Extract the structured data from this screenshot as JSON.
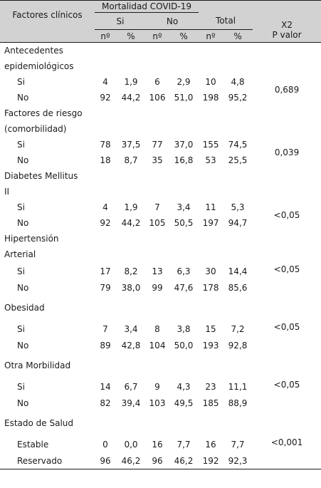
{
  "header": {
    "factores": "Factores clínicos",
    "mortalidad": "Mortalidad COVID-19",
    "si": "Si",
    "no": "No",
    "total": "Total",
    "x2": "X2",
    "pvalor": "P valor",
    "n": "nº",
    "pct": "%"
  },
  "groups": [
    {
      "label_lines": [
        "Antecedentes",
        "epidemiológicos"
      ],
      "pvalue": "0,689",
      "rows": [
        {
          "label": "Si",
          "si_n": "4",
          "si_pct": "1,9",
          "no_n": "6",
          "no_pct": "2,9",
          "total_n": "10",
          "total_pct": "4,8"
        },
        {
          "label": "No",
          "si_n": "92",
          "si_pct": "44,2",
          "no_n": "106",
          "no_pct": "51,0",
          "total_n": "198",
          "total_pct": "95,2"
        }
      ]
    },
    {
      "label_lines": [
        "Factores de riesgo",
        "(comorbilidad)"
      ],
      "pvalue": "0,039",
      "rows": [
        {
          "label": "Si",
          "si_n": "78",
          "si_pct": "37,5",
          "no_n": "77",
          "no_pct": "37,0",
          "total_n": "155",
          "total_pct": "74,5"
        },
        {
          "label": "No",
          "si_n": "18",
          "si_pct": "8,7",
          "no_n": "35",
          "no_pct": "16,8",
          "total_n": "53",
          "total_pct": "25,5"
        }
      ]
    },
    {
      "label_lines": [
        "Diabetes Mellitus",
        "II"
      ],
      "pvalue": "<0,05",
      "rows": [
        {
          "label": "Si",
          "si_n": "4",
          "si_pct": "1,9",
          "no_n": "7",
          "no_pct": "3,4",
          "total_n": "11",
          "total_pct": "5,3"
        },
        {
          "label": "No",
          "si_n": "92",
          "si_pct": "44,2",
          "no_n": "105",
          "no_pct": "50,5",
          "total_n": "197",
          "total_pct": "94,7"
        }
      ]
    },
    {
      "label_lines": [
        "Hipertensión",
        "Arterial"
      ],
      "pvalue": "<0,05",
      "pvalue_on_first": true,
      "rows": [
        {
          "label": "Si",
          "si_n": "17",
          "si_pct": "8,2",
          "no_n": "13",
          "no_pct": "6,3",
          "total_n": "30",
          "total_pct": "14,4"
        },
        {
          "label": "No",
          "si_n": "79",
          "si_pct": "38,0",
          "no_n": "99",
          "no_pct": "47,6",
          "total_n": "178",
          "total_pct": "85,6"
        }
      ]
    },
    {
      "label_lines": [
        "Obesidad"
      ],
      "pvalue": "<0,05",
      "pvalue_on_first": true,
      "rows": [
        {
          "label": "Si",
          "si_n": "7",
          "si_pct": "3,4",
          "no_n": "8",
          "no_pct": "3,8",
          "total_n": "15",
          "total_pct": "7,2"
        },
        {
          "label": "No",
          "si_n": "89",
          "si_pct": "42,8",
          "no_n": "104",
          "no_pct": "50,0",
          "total_n": "193",
          "total_pct": "92,8"
        }
      ]
    },
    {
      "label_lines": [
        "Otra Morbilidad"
      ],
      "pvalue": "<0,05",
      "pvalue_on_first": true,
      "rows": [
        {
          "label": "Si",
          "si_n": "14",
          "si_pct": "6,7",
          "no_n": "9",
          "no_pct": "4,3",
          "total_n": "23",
          "total_pct": "11,1"
        },
        {
          "label": "No",
          "si_n": "82",
          "si_pct": "39,4",
          "no_n": "103",
          "no_pct": "49,5",
          "total_n": "185",
          "total_pct": "88,9"
        }
      ]
    },
    {
      "label_lines": [
        "Estado de Salud"
      ],
      "pvalue": "<0,001",
      "pvalue_on_first": true,
      "rows": [
        {
          "label": "Estable",
          "si_n": "0",
          "si_pct": "0,0",
          "no_n": "16",
          "no_pct": "7,7",
          "total_n": "16",
          "total_pct": "7,7"
        },
        {
          "label": "Reservado",
          "si_n": "96",
          "si_pct": "46,2",
          "no_n": "96",
          "no_pct": "46,2",
          "total_n": "192",
          "total_pct": "92,3"
        }
      ]
    }
  ]
}
